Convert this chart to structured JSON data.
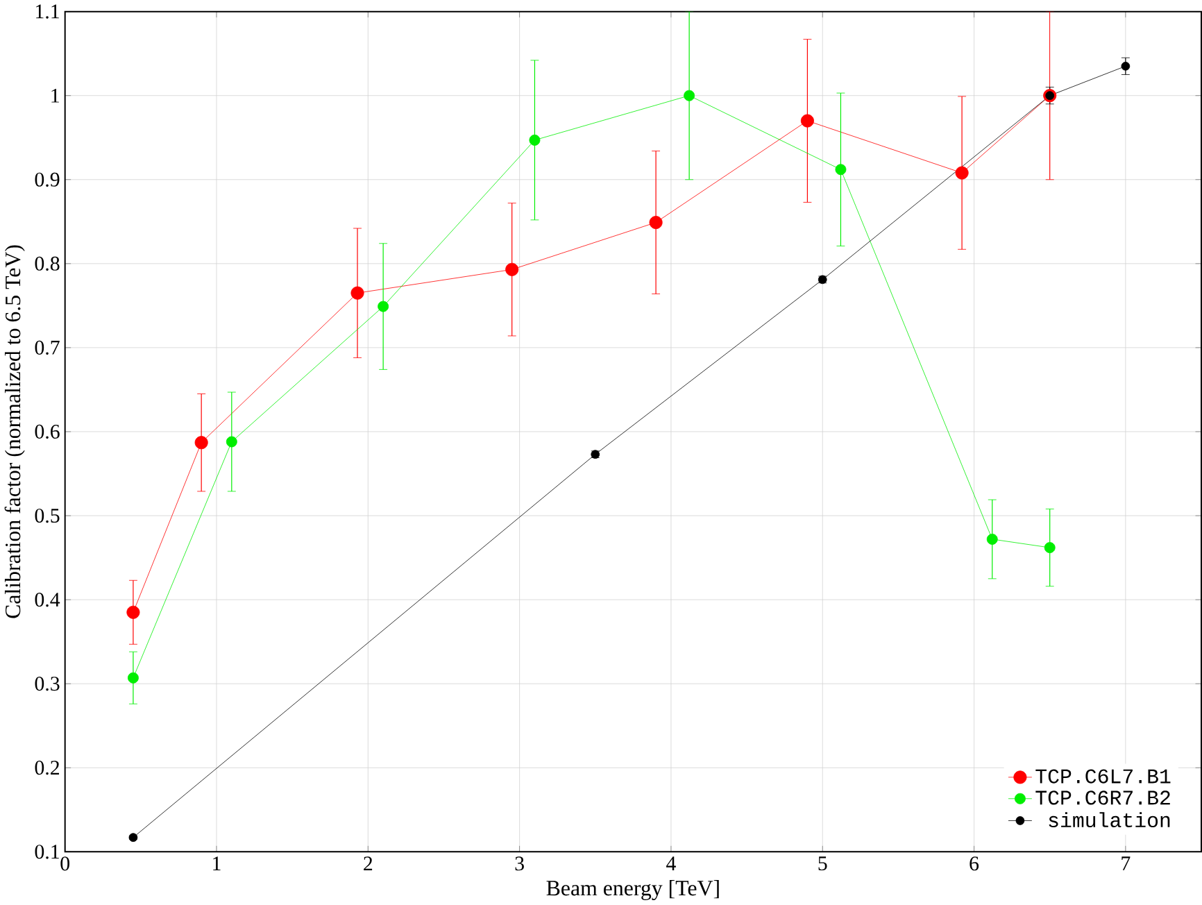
{
  "chart_data": {
    "type": "line",
    "xlabel": "Beam energy [TeV]",
    "ylabel": "Calibration factor (normalized to 6.5 TeV)",
    "xlim": [
      0,
      7.5
    ],
    "ylim": [
      0.1,
      1.1
    ],
    "xticks": [
      0,
      1,
      2,
      3,
      4,
      5,
      6,
      7
    ],
    "yticks": [
      0.1,
      0.2,
      0.3,
      0.4,
      0.5,
      0.6,
      0.7,
      0.8,
      0.9,
      1,
      1.1
    ],
    "grid": true,
    "legend": "bottom right",
    "marker": "circle",
    "line_style": "solid",
    "series": [
      {
        "name": "TCP.C6L7.B1",
        "color": "#ff0000",
        "x": [
          0.45,
          0.9,
          1.93,
          2.95,
          3.9,
          4.9,
          5.92,
          6.5
        ],
        "values": [
          0.385,
          0.587,
          0.765,
          0.793,
          0.849,
          0.97,
          0.908,
          1.0
        ],
        "errors": [
          0.038,
          0.058,
          0.077,
          0.079,
          0.085,
          0.097,
          0.091,
          0.1
        ]
      },
      {
        "name": "TCP.C6R7.B2",
        "color": "#00ee00",
        "x": [
          0.45,
          1.1,
          2.1,
          3.1,
          4.12,
          5.12,
          6.12,
          6.5
        ],
        "values": [
          0.307,
          0.588,
          0.749,
          0.947,
          1.0,
          0.912,
          0.472,
          0.462
        ],
        "errors": [
          0.031,
          0.059,
          0.075,
          0.095,
          0.1,
          0.091,
          0.047,
          0.046
        ]
      },
      {
        "name": "simulation",
        "color": "#000000",
        "x": [
          0.45,
          3.5,
          5.0,
          6.5,
          7.0
        ],
        "values": [
          0.117,
          0.573,
          0.781,
          1.0,
          1.035
        ],
        "errors": [
          0.002,
          0.004,
          0.004,
          0.01,
          0.01
        ]
      }
    ]
  }
}
